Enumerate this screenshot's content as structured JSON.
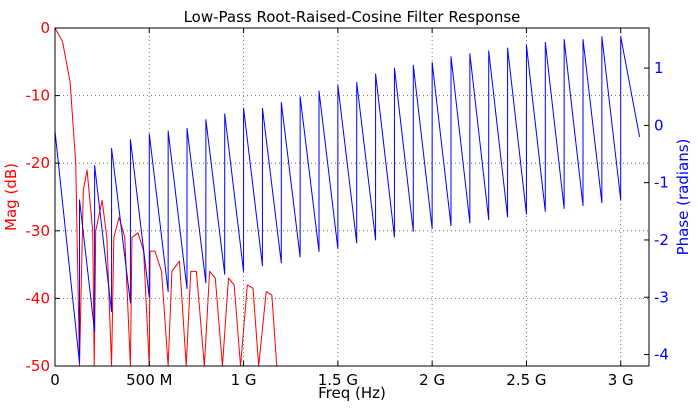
{
  "chart_data": {
    "type": "line",
    "title": "Low-Pass Root-Raised-Cosine Filter Response",
    "xlabel": "Freq (Hz)",
    "ylabel_left": "Mag (dB)",
    "ylabel_right": "Phase (radians)",
    "xlim": [
      0,
      3150000000.0
    ],
    "ylim_left": [
      -50,
      0
    ],
    "ylim_right": [
      -4.2,
      1.7
    ],
    "grid": true,
    "x_ticks": [
      {
        "value": 0,
        "label": "0"
      },
      {
        "value": 500000000,
        "label": "500 M"
      },
      {
        "value": 1000000000,
        "label": "1 G"
      },
      {
        "value": 1500000000,
        "label": "1.5 G"
      },
      {
        "value": 2000000000,
        "label": "2 G"
      },
      {
        "value": 2500000000,
        "label": "2.5 G"
      },
      {
        "value": 3000000000,
        "label": "3 G"
      }
    ],
    "y_ticks_left": [
      {
        "value": 0,
        "label": "0"
      },
      {
        "value": -10,
        "label": "-10"
      },
      {
        "value": -20,
        "label": "-20"
      },
      {
        "value": -30,
        "label": "-30"
      },
      {
        "value": -40,
        "label": "-40"
      },
      {
        "value": -50,
        "label": "-50"
      }
    ],
    "y_ticks_right": [
      {
        "value": 1,
        "label": "1"
      },
      {
        "value": 0,
        "label": "0"
      },
      {
        "value": -1,
        "label": "-1"
      },
      {
        "value": -2,
        "label": "-2"
      },
      {
        "value": -3,
        "label": "-3"
      },
      {
        "value": -4,
        "label": "-4"
      }
    ],
    "colors": {
      "magnitude": "#ff0000",
      "phase": "#0000ff"
    },
    "series": [
      {
        "axis": "left",
        "color": "#ff0000",
        "sidelobe_spacing_hz": 96000000,
        "x": [
          0,
          40000000,
          80000000,
          110000000,
          130000000,
          150000000,
          170000000,
          200000000,
          208000000,
          216000000,
          250000000,
          275000000,
          300000000,
          312000000,
          340000000,
          370000000,
          400000000,
          408000000,
          440000000,
          470000000,
          500000000,
          504000000,
          530000000,
          565000000,
          600000000,
          620000000,
          660000000,
          696000000,
          720000000,
          750000000,
          792000000,
          820000000,
          850000000,
          888000000,
          920000000,
          950000000,
          984000000,
          1020000000,
          1050000000,
          1080000000,
          1120000000,
          1150000000,
          1176000000
        ],
        "y": [
          0,
          -2,
          -8,
          -20,
          -50,
          -24,
          -21,
          -30,
          -50,
          -30,
          -25.5,
          -31,
          -50,
          -31,
          -28,
          -31,
          -50,
          -31,
          -30.3,
          -33,
          -50,
          -33,
          -33,
          -36,
          -50,
          -36,
          -34.5,
          -50,
          -36,
          -36,
          -50,
          -36,
          -37,
          -50,
          -37,
          -38,
          -50,
          -38,
          -38.5,
          -50,
          -39,
          -39.5,
          -50
        ]
      },
      {
        "axis": "right",
        "color": "#0000ff",
        "wrap_period_hz": 96000000,
        "x": [
          0,
          130000000,
          130100000,
          210000000,
          210100000,
          300000000,
          300100000,
          400000000,
          400100000,
          500000000,
          500100000,
          600000000,
          600100000,
          700000000,
          700100000,
          800000000,
          800100000,
          900000000,
          900100000,
          1000000000,
          1000100000,
          1100000000,
          1100100000,
          1200000000,
          1200100000,
          1300000000,
          1300100000,
          1400000000,
          1400100000,
          1500000000,
          1500100000,
          1600000000,
          1600100000,
          1700000000,
          1700100000,
          1800000000,
          1800100000,
          1900000000,
          1900100000,
          2000000000,
          2000100000,
          2100000000,
          2100100000,
          2200000000,
          2200100000,
          2300000000,
          2300100000,
          2400000000,
          2400100000,
          2500000000,
          2500100000,
          2600000000,
          2600100000,
          2700000000,
          2700100000,
          2800000000,
          2800100000,
          2900000000,
          2900100000,
          3000000000,
          3000100000,
          3100000000
        ],
        "y": [
          -0.1,
          -4.15,
          -1.3,
          -3.6,
          -0.7,
          -3.25,
          -0.4,
          -3.1,
          -0.25,
          -3.0,
          -0.15,
          -2.9,
          -0.1,
          -2.85,
          -0.05,
          -2.75,
          0.1,
          -2.6,
          0.2,
          -2.55,
          0.3,
          -2.45,
          0.3,
          -2.4,
          0.4,
          -2.3,
          0.5,
          -2.2,
          0.6,
          -2.15,
          0.7,
          -2.05,
          0.75,
          -2.0,
          0.9,
          -1.95,
          1.0,
          -1.85,
          1.05,
          -1.8,
          1.1,
          -1.75,
          1.2,
          -1.7,
          1.25,
          -1.65,
          1.3,
          -1.6,
          1.35,
          -1.55,
          1.4,
          -1.5,
          1.45,
          -1.45,
          1.5,
          -1.4,
          1.5,
          -1.35,
          1.55,
          -1.3,
          1.55,
          -0.2
        ]
      }
    ]
  }
}
